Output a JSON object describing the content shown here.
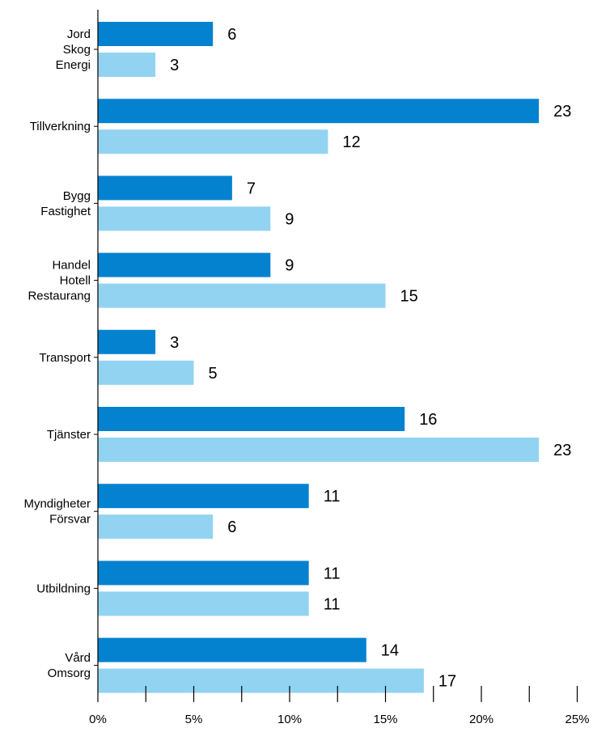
{
  "colors": {
    "series_1": "#0482d0",
    "series_2": "#93d3f2",
    "axis": "#000000"
  },
  "chart_data": {
    "type": "bar",
    "orientation": "horizontal",
    "categories": [
      [
        "Jord",
        "Skog",
        "Energi"
      ],
      [
        "Tillverkning"
      ],
      [
        "Bygg",
        "Fastighet"
      ],
      [
        "Handel",
        "Hotell",
        "Restaurang"
      ],
      [
        "Transport"
      ],
      [
        "Tjänster"
      ],
      [
        "Myndigheter",
        "Försvar"
      ],
      [
        "Utbildning"
      ],
      [
        "Vård",
        "Omsorg"
      ]
    ],
    "series": [
      {
        "values": [
          6,
          23,
          7,
          9,
          3,
          16,
          11,
          11,
          14
        ]
      },
      {
        "values": [
          3,
          12,
          9,
          15,
          5,
          23,
          6,
          11,
          17
        ]
      }
    ],
    "xlim": [
      0,
      25
    ],
    "x_ticks": [
      0,
      5,
      10,
      15,
      20,
      25
    ],
    "x_tick_labels": [
      "0%",
      "5%",
      "10%",
      "15%",
      "20%",
      "25%"
    ],
    "grid": false,
    "legend": "none",
    "title": "",
    "xlabel": "",
    "ylabel": ""
  }
}
